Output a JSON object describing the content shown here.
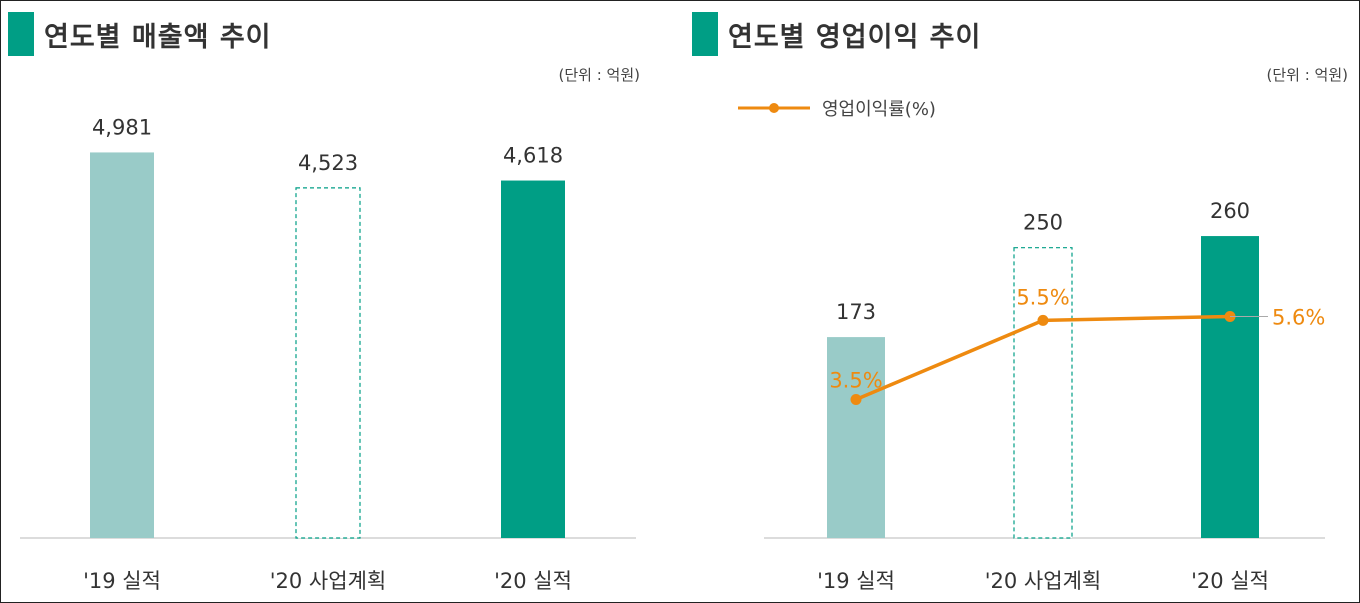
{
  "left_panel": {
    "title": "연도별 매출액 추이",
    "unit": "(단위 : 억원)"
  },
  "right_panel": {
    "title": "연도별 영업이익 추이",
    "unit": "(단위 : 억원)",
    "legend_label": "영업이익률(%)"
  },
  "colors": {
    "accent": "#009e85",
    "light_bar": "#99cbc8",
    "line": "#ee8a10"
  },
  "chart_data": [
    {
      "type": "bar",
      "title": "연도별 매출액 추이",
      "unit": "(단위 : 억원)",
      "categories": [
        "'19 실적",
        "'20 사업계획",
        "'20 실적"
      ],
      "values": [
        4981,
        4523,
        4618
      ],
      "value_labels": [
        "4,981",
        "4,523",
        "4,618"
      ],
      "bar_styles": [
        "light",
        "dashed-outline",
        "solid"
      ],
      "ylim": [
        0,
        5400
      ],
      "grid": false
    },
    {
      "type": "bar",
      "title": "연도별 영업이익 추이",
      "unit": "(단위 : 억원)",
      "categories": [
        "'19 실적",
        "'20 사업계획",
        "'20 실적"
      ],
      "values": [
        173,
        250,
        260
      ],
      "value_labels": [
        "173",
        "250",
        "260"
      ],
      "bar_styles": [
        "light",
        "dashed-outline",
        "solid"
      ],
      "ylim": [
        0,
        310
      ],
      "grid": false,
      "line_series": {
        "name": "영업이익률(%)",
        "values": [
          3.5,
          5.5,
          5.6
        ],
        "labels": [
          "3.5%",
          "5.5%",
          "5.6%"
        ],
        "ylim": [
          0,
          9.1
        ]
      },
      "legend_position": "top-left"
    }
  ]
}
